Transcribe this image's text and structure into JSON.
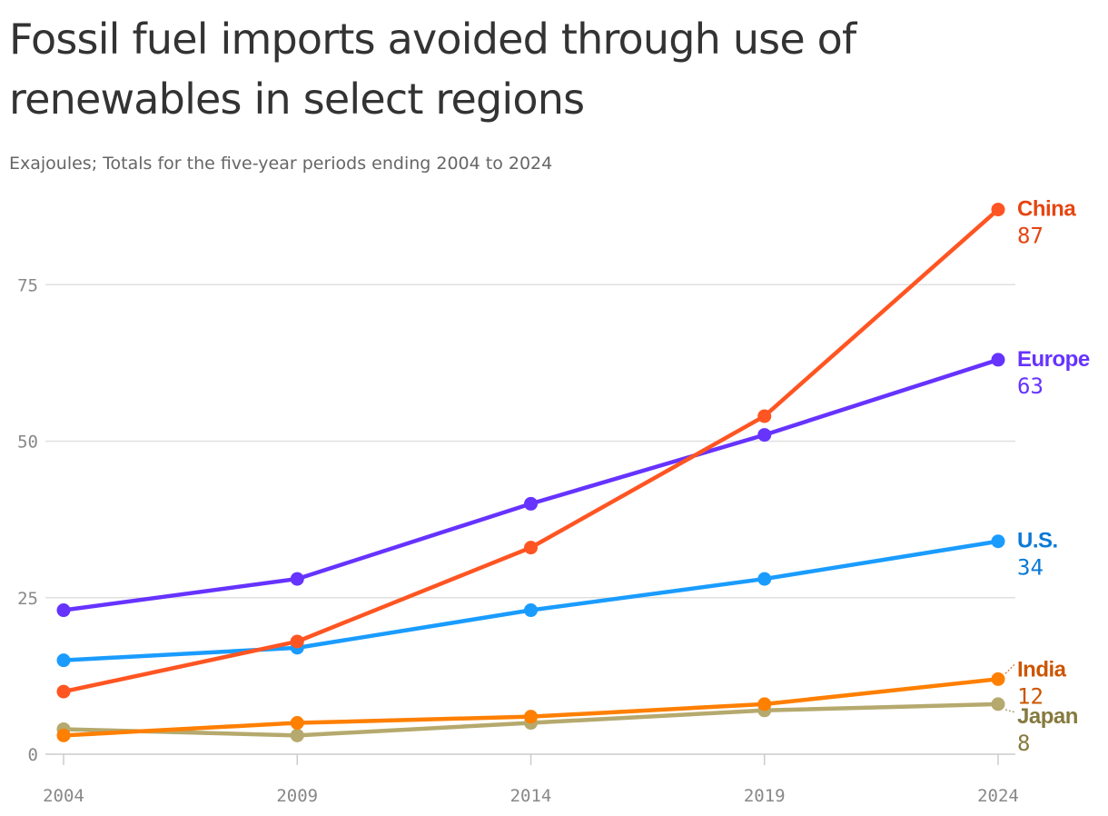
{
  "title": "Fossil fuel imports avoided through use of renewables in select regions",
  "subtitle": "Exajoules; Totals for the five-year periods ending 2004 to 2024",
  "chart_data": {
    "type": "line",
    "title": "Fossil fuel imports avoided through use of renewables in select regions",
    "subtitle": "Exajoules; Totals for the five-year periods ending 2004 to 2024",
    "xlabel": "",
    "ylabel": "",
    "x": [
      2004,
      2009,
      2014,
      2019,
      2024
    ],
    "x_tick_labels": [
      "2004",
      "2009",
      "2014",
      "2019",
      "2024"
    ],
    "y_ticks": [
      0,
      25,
      50,
      75
    ],
    "y_tick_labels": [
      "0",
      "25",
      "50",
      "75"
    ],
    "ylim": [
      0,
      87
    ],
    "grid": true,
    "legend": "direct labels at right end of lines",
    "series": [
      {
        "name": "Japan",
        "values": [
          4,
          3,
          5,
          7,
          8
        ],
        "color": "#b5a96e",
        "label_color": "#857a3e",
        "end_label": "8"
      },
      {
        "name": "India",
        "values": [
          3,
          5,
          6,
          8,
          12
        ],
        "color": "#ff7f00",
        "label_color": "#cc5500",
        "end_label": "12"
      },
      {
        "name": "U.S.",
        "values": [
          15,
          17,
          23,
          28,
          34
        ],
        "color": "#1a9cff",
        "label_color": "#0b7ad6",
        "end_label": "34"
      },
      {
        "name": "Europe",
        "values": [
          23,
          28,
          40,
          51,
          63
        ],
        "color": "#6633ff",
        "label_color": "#6633ff",
        "end_label": "63"
      },
      {
        "name": "China",
        "values": [
          10,
          18,
          33,
          54,
          87
        ],
        "color": "#ff5522",
        "label_color": "#e64510",
        "end_label": "87"
      }
    ]
  }
}
